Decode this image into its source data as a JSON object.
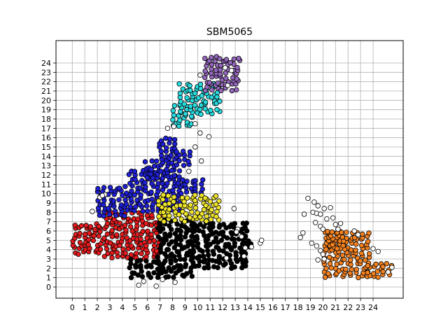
{
  "chart_data": {
    "type": "scatter",
    "title": "SBM5065",
    "xlabel": "",
    "ylabel": "",
    "x_ticks": [
      "0",
      "1",
      "2",
      "3",
      "4",
      "5",
      "6",
      "7",
      "8",
      "9",
      "10",
      "11",
      "12",
      "13",
      "14",
      "15",
      "16",
      "17",
      "18",
      "19",
      "20",
      "21",
      "22",
      "23",
      "24"
    ],
    "y_ticks": [
      "0",
      "1",
      "2",
      "3",
      "4",
      "5",
      "6",
      "7",
      "8",
      "9",
      "10",
      "11",
      "12",
      "13",
      "14",
      "15",
      "16",
      "17",
      "18",
      "19",
      "20",
      "21",
      "22",
      "23",
      "24"
    ],
    "xlim": [
      -1.3,
      26.4
    ],
    "ylim": [
      -1.2,
      26.4
    ],
    "grid": true,
    "legend": "none",
    "clusters": [
      {
        "color": "#e41a1c",
        "regions": [
          [
            0,
            3.5,
            2.5,
            6.5
          ],
          [
            2.5,
            3,
            6.8,
            8
          ]
        ]
      },
      {
        "color": "#000000",
        "regions": [
          [
            6.8,
            1,
            9.5,
            7
          ],
          [
            9.5,
            2,
            13.8,
            7
          ],
          [
            4.5,
            1,
            6.8,
            3
          ],
          [
            13.5,
            4,
            14.2,
            5.2
          ]
        ]
      },
      {
        "color": "#1f1fd6",
        "regions": [
          [
            2,
            7.5,
            4.5,
            10.5
          ],
          [
            4.5,
            8,
            8.5,
            12.5
          ],
          [
            5.8,
            11.5,
            8.2,
            13.5
          ],
          [
            6.8,
            13.5,
            8.3,
            16
          ],
          [
            8.5,
            10,
            10.5,
            11.5
          ],
          [
            8.2,
            13,
            9.2,
            14.5
          ]
        ]
      },
      {
        "color": "#f0e52b",
        "regions": [
          [
            6.8,
            7,
            11.5,
            9.8
          ]
        ]
      },
      {
        "color": "#27dce0",
        "regions": [
          [
            8,
            17,
            9.5,
            19.5
          ],
          [
            8.5,
            18.5,
            11.8,
            21.5
          ]
        ]
      },
      {
        "color": "#9467bd",
        "regions": [
          [
            10.5,
            21,
            13.1,
            24.5
          ]
        ]
      },
      {
        "color": "#f58220",
        "regions": [
          [
            20,
            1,
            23.5,
            5.8
          ],
          [
            23.5,
            1,
            25.5,
            2.3
          ],
          [
            20.2,
            4,
            21.5,
            6
          ]
        ]
      }
    ],
    "outliers": [
      [
        1.6,
        8.1
      ],
      [
        2.2,
        9.6
      ],
      [
        2.6,
        9.9
      ],
      [
        2.4,
        9.8
      ],
      [
        5.3,
        0.2
      ],
      [
        5.7,
        0.6
      ],
      [
        6.7,
        0.1
      ],
      [
        7.2,
        0.8
      ],
      [
        8.2,
        0.5
      ],
      [
        7.6,
        17.0
      ],
      [
        8.1,
        17.2
      ],
      [
        9.8,
        17.5
      ],
      [
        10.2,
        16.5
      ],
      [
        10.9,
        16.1
      ],
      [
        9.8,
        15.0
      ],
      [
        10.3,
        13.5
      ],
      [
        9.3,
        12.4
      ],
      [
        10.2,
        22.7
      ],
      [
        12.4,
        21.6
      ],
      [
        12.2,
        23.5
      ],
      [
        12.7,
        23.2
      ],
      [
        12.9,
        8.4
      ],
      [
        13.2,
        6.2
      ],
      [
        13.5,
        5.4
      ],
      [
        13.1,
        5.9
      ],
      [
        13.8,
        4.2
      ],
      [
        14.3,
        4.3
      ],
      [
        15.0,
        4.7
      ],
      [
        15.1,
        5.0
      ],
      [
        13.7,
        3.3
      ],
      [
        12.3,
        3.1
      ],
      [
        18.4,
        5.8
      ],
      [
        18.2,
        5.3
      ],
      [
        18.5,
        7.8
      ],
      [
        18.8,
        9.5
      ],
      [
        19.2,
        8.0
      ],
      [
        19.5,
        7.9
      ],
      [
        19.8,
        7.8
      ],
      [
        19.3,
        9.1
      ],
      [
        19.6,
        8.7
      ],
      [
        20.1,
        8.4
      ],
      [
        20.6,
        8.5
      ],
      [
        20.3,
        7.3
      ],
      [
        20.8,
        7.4
      ],
      [
        21.0,
        6.7
      ],
      [
        21.4,
        6.8
      ],
      [
        21.2,
        6.2
      ],
      [
        19.4,
        6.9
      ],
      [
        19.8,
        6.5
      ],
      [
        20.0,
        6.2
      ],
      [
        19.1,
        4.7
      ],
      [
        19.5,
        4.4
      ],
      [
        19.8,
        3.9
      ],
      [
        20.0,
        3.5
      ],
      [
        19.6,
        2.9
      ],
      [
        20.1,
        3.0
      ],
      [
        22.5,
        6.0
      ],
      [
        22.8,
        5.6
      ],
      [
        24.0,
        4.1
      ],
      [
        24.4,
        3.8
      ],
      [
        25.2,
        1.6
      ],
      [
        25.5,
        2.1
      ]
    ]
  }
}
